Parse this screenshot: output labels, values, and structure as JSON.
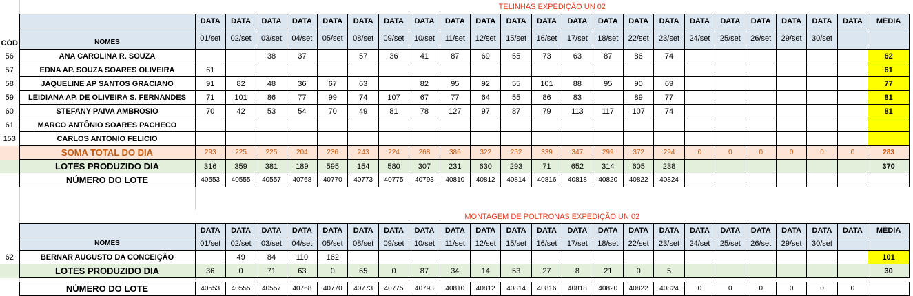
{
  "t1": {
    "title": "TELINHAS EXPEDIÇÃO UN 02",
    "hdr_data": [
      "DATA",
      "DATA",
      "DATA",
      "DATA",
      "DATA",
      "DATA",
      "DATA",
      "DATA",
      "DATA",
      "DATA",
      "DATA",
      "DATA",
      "DATA",
      "DATA",
      "DATA",
      "DATA",
      "DATA",
      "DATA",
      "DATA",
      "DATA",
      "DATA",
      "DATA"
    ],
    "media_label": "MÉDIA",
    "cod_label": "CÓD",
    "nomes_label": "NOMES",
    "dates": [
      "01/set",
      "02/set",
      "03/set",
      "04/set",
      "05/set",
      "08/set",
      "09/set",
      "10/set",
      "11/set",
      "12/set",
      "15/set",
      "16/set",
      "17/set",
      "18/set",
      "22/set",
      "23/set",
      "24/set",
      "25/set",
      "26/set",
      "29/set",
      "30/set",
      ""
    ],
    "rows": [
      {
        "cod": "56",
        "name": "ANA CAROLINA R. SOUZA",
        "v": [
          "",
          "",
          "38",
          "37",
          "",
          "57",
          "36",
          "41",
          "87",
          "69",
          "55",
          "73",
          "63",
          "87",
          "86",
          "74",
          "",
          "",
          "",
          "",
          "",
          ""
        ],
        "media": "62"
      },
      {
        "cod": "57",
        "name": "EDNA AP. SOUZA SOARES OLIVEIRA",
        "v": [
          "61",
          "",
          "",
          "",
          "",
          "",
          "",
          "",
          "",
          "",
          "",
          "",
          "",
          "",
          "",
          "",
          "",
          "",
          "",
          "",
          "",
          ""
        ],
        "media": "61"
      },
      {
        "cod": "58",
        "name": "JAQUELINE AP SANTOS GRACIANO",
        "v": [
          "91",
          "82",
          "48",
          "36",
          "67",
          "63",
          "",
          "82",
          "95",
          "92",
          "55",
          "101",
          "88",
          "95",
          "90",
          "69",
          "",
          "",
          "",
          "",
          "",
          ""
        ],
        "media": "77"
      },
      {
        "cod": "59",
        "name": "LEIDIANA AP. DE OLIVEIRA S. FERNANDES",
        "v": [
          "71",
          "101",
          "86",
          "77",
          "99",
          "74",
          "107",
          "67",
          "77",
          "64",
          "55",
          "86",
          "83",
          "",
          "89",
          "77",
          "",
          "",
          "",
          "",
          "",
          ""
        ],
        "media": "81"
      },
      {
        "cod": "60",
        "name": "STEFANY PAIVA AMBROSIO",
        "v": [
          "70",
          "42",
          "53",
          "54",
          "70",
          "49",
          "81",
          "78",
          "127",
          "97",
          "87",
          "79",
          "113",
          "117",
          "107",
          "74",
          "",
          "",
          "",
          "",
          "",
          ""
        ],
        "media": "81"
      },
      {
        "cod": "61",
        "name": "MARCO ANTÔNIO SOARES PACHECO",
        "v": [
          "",
          "",
          "",
          "",
          "",
          "",
          "",
          "",
          "",
          "",
          "",
          "",
          "",
          "",
          "",
          "",
          "",
          "",
          "",
          "",
          "",
          ""
        ],
        "media": ""
      },
      {
        "cod": "153",
        "name": "CARLOS ANTONIO FELICIO",
        "v": [
          "",
          "",
          "",
          "",
          "",
          "",
          "",
          "",
          "",
          "",
          "",
          "",
          "",
          "",
          "",
          "",
          "",
          "",
          "",
          "",
          "",
          ""
        ],
        "media": ""
      }
    ],
    "soma": {
      "name": "SOMA TOTAL DO DIA",
      "v": [
        "293",
        "225",
        "225",
        "204",
        "236",
        "243",
        "224",
        "268",
        "386",
        "322",
        "252",
        "339",
        "347",
        "299",
        "372",
        "294",
        "0",
        "0",
        "0",
        "0",
        "0",
        "0"
      ],
      "media": "283"
    },
    "lotes": {
      "name": "LOTES PRODUZIDO DIA",
      "v": [
        "316",
        "359",
        "381",
        "189",
        "595",
        "154",
        "580",
        "307",
        "231",
        "630",
        "293",
        "71",
        "652",
        "314",
        "605",
        "238",
        "",
        "",
        "",
        "",
        "",
        ""
      ],
      "media": "370"
    },
    "numero": {
      "name": "NÚMERO DO LOTE",
      "v": [
        "40553",
        "40555",
        "40557",
        "40768",
        "40770",
        "40773",
        "40775",
        "40793",
        "40810",
        "40812",
        "40814",
        "40816",
        "40818",
        "40820",
        "40822",
        "40824",
        "",
        "",
        "",
        "",
        "",
        ""
      ],
      "media": ""
    }
  },
  "t2": {
    "title": "MONTAGEM DE POLTRONAS EXPEDIÇÃO UN 02",
    "hdr_data": [
      "DATA",
      "DATA",
      "DATA",
      "DATA",
      "DATA",
      "DATA",
      "DATA",
      "DATA",
      "DATA",
      "DATA",
      "DATA",
      "DATA",
      "DATA",
      "DATA",
      "DATA",
      "DATA",
      "DATA",
      "DATA",
      "DATA",
      "DATA",
      "DATA",
      "DATA"
    ],
    "media_label": "MÉDIA",
    "nomes_label": "NOMES",
    "dates": [
      "01/set",
      "02/set",
      "03/set",
      "04/set",
      "05/set",
      "08/set",
      "09/set",
      "10/set",
      "11/set",
      "12/set",
      "15/set",
      "16/set",
      "17/set",
      "18/set",
      "22/set",
      "23/set",
      "24/set",
      "25/set",
      "26/set",
      "29/set",
      "30/set",
      ""
    ],
    "rows": [
      {
        "cod": "62",
        "name": "BERNAR AUGUSTO DA CONCEIÇÃO",
        "v": [
          "",
          "49",
          "84",
          "110",
          "162",
          "",
          "",
          "",
          "",
          "",
          "",
          "",
          "",
          "",
          "",
          "",
          "",
          "",
          "",
          "",
          "",
          ""
        ],
        "media": "101"
      }
    ],
    "lotes": {
      "name": "LOTES PRODUZIDO DIA",
      "v": [
        "36",
        "0",
        "71",
        "63",
        "0",
        "65",
        "0",
        "87",
        "34",
        "14",
        "53",
        "27",
        "8",
        "21",
        "0",
        "5",
        "",
        "",
        "",
        "",
        "",
        ""
      ],
      "media": "30"
    },
    "numero": {
      "name": "NÚMERO DO LOTE",
      "v": [
        "40553",
        "40555",
        "40557",
        "40768",
        "40770",
        "40773",
        "40775",
        "40793",
        "40810",
        "40812",
        "40814",
        "40816",
        "40818",
        "40820",
        "40822",
        "40824",
        "0",
        "0",
        "0",
        "0",
        "0",
        "0"
      ],
      "media": ""
    }
  }
}
